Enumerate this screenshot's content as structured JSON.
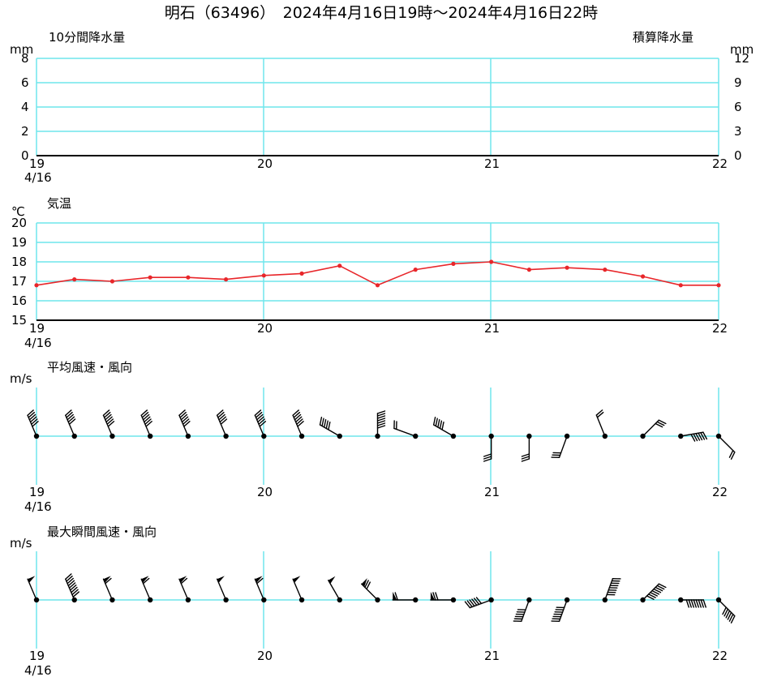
{
  "title": "明石（63496）　2024年4月16日19時～2024年4月16日22時",
  "x_ticks": [
    "19",
    "20",
    "21",
    "22"
  ],
  "x_date": "4/16",
  "chart_data": [
    {
      "type": "line",
      "title": "10分間降水量",
      "right_title": "積算降水量",
      "ylabel": "mm",
      "right_ylabel": "mm",
      "yticks": [
        "0",
        "2",
        "4",
        "6",
        "8"
      ],
      "right_yticks": [
        "0",
        "3",
        "6",
        "9",
        "12"
      ],
      "ylim": [
        0,
        8
      ],
      "right_ylim": [
        0,
        12
      ],
      "xlim": [
        19,
        22
      ],
      "series": []
    },
    {
      "type": "line",
      "title": "気温",
      "ylabel": "℃",
      "yticks": [
        "15",
        "16",
        "17",
        "18",
        "19",
        "20"
      ],
      "ylim": [
        15,
        20
      ],
      "xlim": [
        19,
        22
      ],
      "color": "#e8262a",
      "x": [
        19.0,
        19.1667,
        19.3333,
        19.5,
        19.6667,
        19.8333,
        20.0,
        20.1667,
        20.3333,
        20.5,
        20.6667,
        20.8333,
        21.0,
        21.1667,
        21.3333,
        21.5,
        21.6667,
        21.8333,
        22.0
      ],
      "values": [
        16.8,
        17.1,
        17.0,
        17.2,
        17.2,
        17.1,
        17.3,
        17.4,
        17.8,
        16.8,
        17.6,
        17.9,
        18.0,
        17.6,
        17.7,
        17.6,
        17.25,
        16.8,
        16.8
      ]
    },
    {
      "type": "scatter",
      "title": "平均風速・風向",
      "ylabel": "m/s",
      "xlim": [
        19,
        22
      ],
      "x": [
        19.0,
        19.1667,
        19.3333,
        19.5,
        19.6667,
        19.8333,
        20.0,
        20.1667,
        20.3333,
        20.5,
        20.6667,
        20.8333,
        21.0,
        21.1667,
        21.3333,
        21.5,
        21.6667,
        21.8333,
        22.0
      ],
      "direction_deg": [
        337,
        337,
        337,
        337,
        337,
        337,
        337,
        337,
        300,
        360,
        290,
        300,
        180,
        180,
        200,
        338,
        45,
        80,
        135
      ],
      "speed_ms": [
        6,
        5,
        6,
        6,
        6,
        5,
        6,
        6,
        5,
        7,
        2,
        5,
        3,
        3,
        3,
        2,
        3,
        6,
        2
      ]
    },
    {
      "type": "scatter",
      "title": "最大瞬間風速・風向",
      "ylabel": "m/s",
      "xlim": [
        19,
        22
      ],
      "x": [
        19.0,
        19.1667,
        19.3333,
        19.5,
        19.6667,
        19.8333,
        20.0,
        20.1667,
        20.3333,
        20.5,
        20.6667,
        20.8333,
        21.0,
        21.1667,
        21.3333,
        21.5,
        21.6667,
        21.8333,
        22.0
      ],
      "direction_deg": [
        337,
        337,
        337,
        337,
        337,
        337,
        337,
        337,
        330,
        315,
        270,
        270,
        250,
        200,
        200,
        20,
        45,
        90,
        135
      ],
      "speed_ms": [
        10,
        9,
        11,
        11,
        11,
        10,
        11,
        10,
        10,
        12,
        11,
        12,
        6,
        6,
        7,
        8,
        8,
        8,
        6
      ]
    }
  ]
}
